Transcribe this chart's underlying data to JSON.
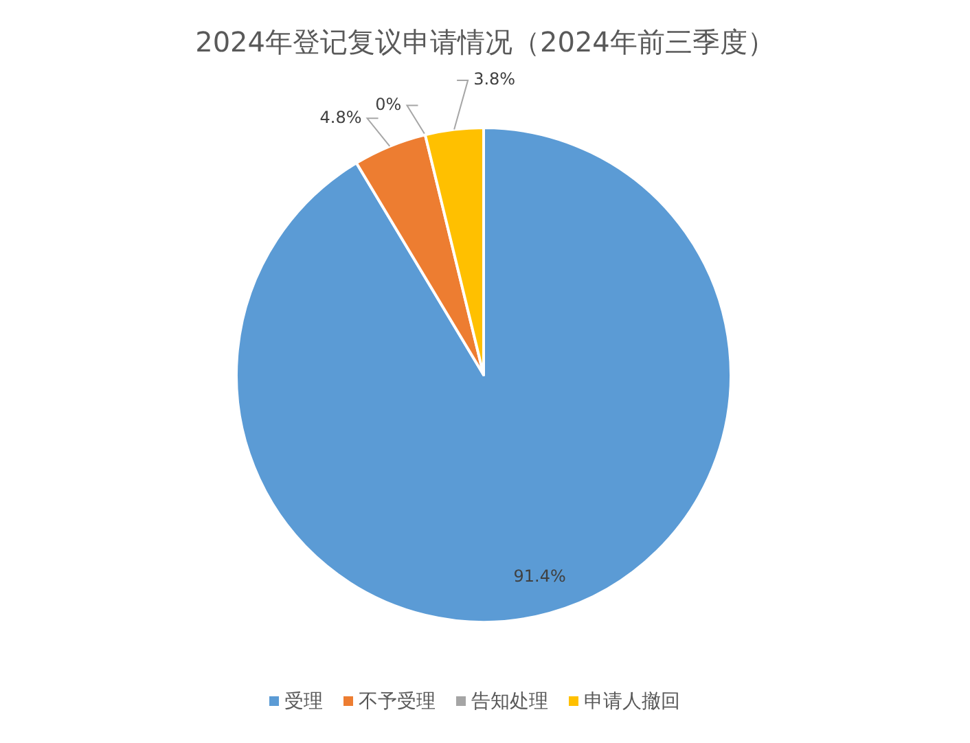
{
  "chart_data": {
    "type": "pie",
    "title": "2024年登记复议申请情况（2024年前三季度）",
    "categories": [
      "受理",
      "不予受理",
      "告知处理",
      "申请人撤回"
    ],
    "values": [
      91.4,
      4.8,
      0,
      3.8
    ],
    "value_labels": [
      "91.4%",
      "4.8%",
      "0%",
      "3.8%"
    ],
    "colors": [
      "#5b9bd5",
      "#ed7d31",
      "#a5a5a5",
      "#ffc000"
    ],
    "legend": "bottom"
  }
}
